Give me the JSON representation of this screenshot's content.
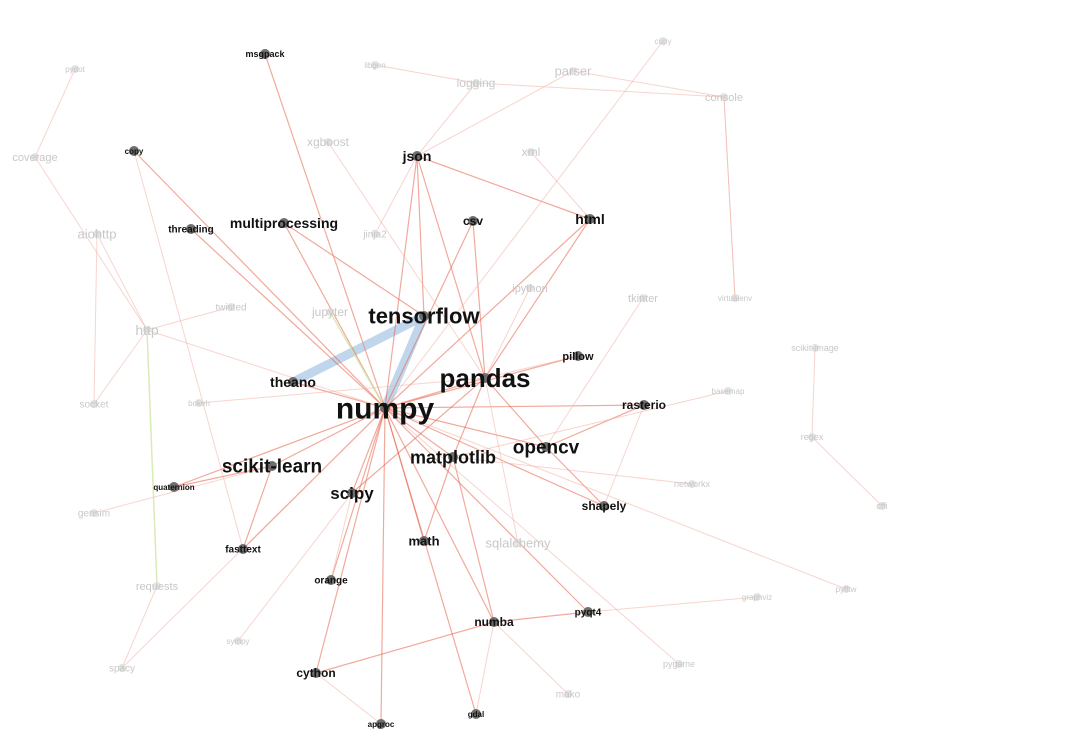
{
  "graph": {
    "colors": {
      "edge": "#e8634a",
      "edge_faint": "#f1b3a6",
      "edge_highlight": "#a9c8e6",
      "edge_green": "#cfe6a8",
      "node": "#666666",
      "node_faint": "#d9d9d9"
    },
    "nodes": [
      {
        "id": "numpy",
        "label": "numpy",
        "size": 30,
        "bold": true
      },
      {
        "id": "pandas",
        "label": "pandas",
        "size": 26,
        "bold": true
      },
      {
        "id": "tensorflow",
        "label": "tensorflow",
        "size": 22,
        "bold": true
      },
      {
        "id": "opencv",
        "label": "opencv",
        "size": 19,
        "bold": true
      },
      {
        "id": "scikit-learn",
        "label": "scikit-learn",
        "size": 19,
        "bold": true
      },
      {
        "id": "matplotlib",
        "label": "matplotlib",
        "size": 18,
        "bold": true
      },
      {
        "id": "scipy",
        "label": "scipy",
        "size": 17,
        "bold": true
      },
      {
        "id": "theano",
        "label": "theano",
        "size": 14,
        "bold": true
      },
      {
        "id": "json",
        "label": "json",
        "size": 14,
        "bold": true
      },
      {
        "id": "multiprocessing",
        "label": "multiprocessing",
        "size": 14,
        "bold": true
      },
      {
        "id": "html",
        "label": "html",
        "size": 14,
        "bold": true
      },
      {
        "id": "csv",
        "label": "csv",
        "size": 12,
        "bold": true
      },
      {
        "id": "math",
        "label": "math",
        "size": 13,
        "bold": true
      },
      {
        "id": "shapely",
        "label": "shapely",
        "size": 12,
        "bold": true
      },
      {
        "id": "rasterio",
        "label": "rasterio",
        "size": 12,
        "bold": true
      },
      {
        "id": "pillow",
        "label": "pillow",
        "size": 11,
        "bold": true
      },
      {
        "id": "cython",
        "label": "cython",
        "size": 12,
        "bold": true
      },
      {
        "id": "numba",
        "label": "numba",
        "size": 12,
        "bold": true
      },
      {
        "id": "pyqt4",
        "label": "pyqt4",
        "size": 10,
        "bold": true
      },
      {
        "id": "orange",
        "label": "orange",
        "size": 10,
        "bold": true
      },
      {
        "id": "fasttext",
        "label": "fasttext",
        "size": 10,
        "bold": true
      },
      {
        "id": "threading",
        "label": "threading",
        "size": 10,
        "bold": true
      },
      {
        "id": "msgpack",
        "label": "msgpack",
        "size": 9,
        "bold": true
      },
      {
        "id": "quaternion",
        "label": "quaternion",
        "size": 8,
        "bold": true
      },
      {
        "id": "copy",
        "label": "copy",
        "size": 8,
        "bold": true
      },
      {
        "id": "gdal",
        "label": "gdal",
        "size": 8,
        "bold": true
      },
      {
        "id": "apgroc",
        "label": "apgroc",
        "size": 8,
        "bold": true
      },
      {
        "id": "logging",
        "label": "logging",
        "size": 12,
        "bold": false
      },
      {
        "id": "parser",
        "label": "parser",
        "size": 13,
        "bold": false
      },
      {
        "id": "console",
        "label": "console",
        "size": 11,
        "bold": false
      },
      {
        "id": "xgboost",
        "label": "xgboost",
        "size": 12,
        "bold": false
      },
      {
        "id": "xml",
        "label": "xml",
        "size": 12,
        "bold": false
      },
      {
        "id": "coverage",
        "label": "coverage",
        "size": 11,
        "bold": false
      },
      {
        "id": "aiohttp",
        "label": "aiohttp",
        "size": 13,
        "bold": false
      },
      {
        "id": "http",
        "label": "http",
        "size": 14,
        "bold": false
      },
      {
        "id": "twisted",
        "label": "twisted",
        "size": 10,
        "bold": false
      },
      {
        "id": "jupyter",
        "label": "jupyter",
        "size": 12,
        "bold": false
      },
      {
        "id": "ipython",
        "label": "ipython",
        "size": 11,
        "bold": false
      },
      {
        "id": "tkinter",
        "label": "tkinter",
        "size": 11,
        "bold": false
      },
      {
        "id": "socket",
        "label": "socket",
        "size": 10,
        "bold": false
      },
      {
        "id": "gensim",
        "label": "gensim",
        "size": 10,
        "bold": false
      },
      {
        "id": "requests",
        "label": "requests",
        "size": 11,
        "bold": false
      },
      {
        "id": "sqlalchemy",
        "label": "sqlalchemy",
        "size": 13,
        "bold": false
      },
      {
        "id": "networkx",
        "label": "networkx",
        "size": 9,
        "bold": false
      },
      {
        "id": "spacy",
        "label": "spacy",
        "size": 10,
        "bold": false
      },
      {
        "id": "mako",
        "label": "mako",
        "size": 10,
        "bold": false
      },
      {
        "id": "jinja2",
        "label": "jinja2",
        "size": 10,
        "bold": false
      },
      {
        "id": "scikit-image",
        "label": "scikit-image",
        "size": 9,
        "bold": false
      },
      {
        "id": "regex",
        "label": "regex",
        "size": 9,
        "bold": false
      },
      {
        "id": "cffi",
        "label": "cffi",
        "size": 9,
        "bold": false
      },
      {
        "id": "pygame",
        "label": "pygame",
        "size": 9,
        "bold": false
      },
      {
        "id": "virtualenv",
        "label": "virtualenv",
        "size": 8,
        "bold": false
      },
      {
        "id": "basemap",
        "label": "basemap",
        "size": 8,
        "bold": false
      },
      {
        "id": "graphviz",
        "label": "graphviz",
        "size": 8,
        "bold": false
      },
      {
        "id": "pyfftw",
        "label": "pyfftw",
        "size": 8,
        "bold": false
      },
      {
        "id": "cupy",
        "label": "cupy",
        "size": 8,
        "bold": false
      },
      {
        "id": "pydot",
        "label": "pydot",
        "size": 8,
        "bold": false
      },
      {
        "id": "bokeh",
        "label": "bokeh",
        "size": 8,
        "bold": false
      },
      {
        "id": "sympy",
        "label": "sympy",
        "size": 8,
        "bold": false
      },
      {
        "id": "libgen",
        "label": "libgen",
        "size": 8,
        "bold": false
      }
    ],
    "edges": [
      {
        "source": "numpy",
        "target": "tensorflow",
        "style": "highlight"
      },
      {
        "source": "theano",
        "target": "tensorflow",
        "style": "highlight"
      },
      {
        "source": "numpy",
        "target": "pandas",
        "style": "strong"
      },
      {
        "source": "numpy",
        "target": "matplotlib",
        "style": "strong"
      },
      {
        "source": "numpy",
        "target": "opencv",
        "style": "strong"
      },
      {
        "source": "numpy",
        "target": "scipy",
        "style": "strong"
      },
      {
        "source": "numpy",
        "target": "scikit-learn",
        "style": "strong"
      },
      {
        "source": "numpy",
        "target": "theano",
        "style": "strong"
      },
      {
        "source": "numpy",
        "target": "json",
        "style": "strong"
      },
      {
        "source": "numpy",
        "target": "csv",
        "style": "strong"
      },
      {
        "source": "numpy",
        "target": "html",
        "style": "strong"
      },
      {
        "source": "numpy",
        "target": "multiprocessing",
        "style": "strong"
      },
      {
        "source": "numpy",
        "target": "math",
        "style": "strong"
      },
      {
        "source": "numpy",
        "target": "cython",
        "style": "strong"
      },
      {
        "source": "numpy",
        "target": "numba",
        "style": "strong"
      },
      {
        "source": "numpy",
        "target": "orange",
        "style": "strong"
      },
      {
        "source": "numpy",
        "target": "fasttext",
        "style": "strong"
      },
      {
        "source": "numpy",
        "target": "copy",
        "style": "strong"
      },
      {
        "source": "numpy",
        "target": "threading",
        "style": "strong"
      },
      {
        "source": "numpy",
        "target": "msgpack",
        "style": "strong"
      },
      {
        "source": "numpy",
        "target": "pillow",
        "style": "strong"
      },
      {
        "source": "numpy",
        "target": "rasterio",
        "style": "strong"
      },
      {
        "source": "numpy",
        "target": "shapely",
        "style": "strong"
      },
      {
        "source": "numpy",
        "target": "quaternion",
        "style": "strong"
      },
      {
        "source": "numpy",
        "target": "gdal",
        "style": "strong"
      },
      {
        "source": "numpy",
        "target": "apgroc",
        "style": "strong"
      },
      {
        "source": "numpy",
        "target": "pyqt4",
        "style": "strong"
      },
      {
        "source": "pandas",
        "target": "matplotlib",
        "style": "strong"
      },
      {
        "source": "pandas",
        "target": "json",
        "style": "strong"
      },
      {
        "source": "pandas",
        "target": "csv",
        "style": "strong"
      },
      {
        "source": "pandas",
        "target": "html",
        "style": "strong"
      },
      {
        "source": "pandas",
        "target": "opencv",
        "style": "strong"
      },
      {
        "source": "pandas",
        "target": "scipy",
        "style": "strong"
      },
      {
        "source": "opencv",
        "target": "shapely",
        "style": "strong"
      },
      {
        "source": "opencv",
        "target": "rasterio",
        "style": "strong"
      },
      {
        "source": "matplotlib",
        "target": "math",
        "style": "strong"
      },
      {
        "source": "matplotlib",
        "target": "numba",
        "style": "strong"
      },
      {
        "source": "scikit-learn",
        "target": "fasttext",
        "style": "strong"
      },
      {
        "source": "scikit-learn",
        "target": "quaternion",
        "style": "strong"
      },
      {
        "source": "tensorflow",
        "target": "multiprocessing",
        "style": "strong"
      },
      {
        "source": "tensorflow",
        "target": "json",
        "style": "strong"
      },
      {
        "source": "html",
        "target": "json",
        "style": "strong"
      },
      {
        "source": "numba",
        "target": "pyqt4",
        "style": "strong"
      },
      {
        "source": "cython",
        "target": "numba",
        "style": "strong"
      },
      {
        "source": "copy",
        "target": "fasttext",
        "style": "faint"
      },
      {
        "source": "msgpack",
        "target": "numpy",
        "style": "faint"
      },
      {
        "source": "logging",
        "target": "console",
        "style": "faint"
      },
      {
        "source": "parser",
        "target": "console",
        "style": "faint"
      },
      {
        "source": "json",
        "target": "parser",
        "style": "faint"
      },
      {
        "source": "json",
        "target": "logging",
        "style": "faint"
      },
      {
        "source": "xml",
        "target": "html",
        "style": "faint"
      },
      {
        "source": "xgboost",
        "target": "pandas",
        "style": "faint"
      },
      {
        "source": "coverage",
        "target": "http",
        "style": "faint"
      },
      {
        "source": "aiohttp",
        "target": "http",
        "style": "faint"
      },
      {
        "source": "aiohttp",
        "target": "socket",
        "style": "faint"
      },
      {
        "source": "http",
        "target": "socket",
        "style": "faint"
      },
      {
        "source": "http",
        "target": "requests",
        "style": "green"
      },
      {
        "source": "http",
        "target": "numpy",
        "style": "faint"
      },
      {
        "source": "twisted",
        "target": "http",
        "style": "faint"
      },
      {
        "source": "jupyter",
        "target": "numpy",
        "style": "green"
      },
      {
        "source": "ipython",
        "target": "pandas",
        "style": "faint"
      },
      {
        "source": "tkinter",
        "target": "opencv",
        "style": "faint"
      },
      {
        "source": "gensim",
        "target": "scikit-learn",
        "style": "faint"
      },
      {
        "source": "requests",
        "target": "spacy",
        "style": "faint"
      },
      {
        "source": "sqlalchemy",
        "target": "pandas",
        "style": "faint"
      },
      {
        "source": "networkx",
        "target": "matplotlib",
        "style": "faint"
      },
      {
        "source": "mako",
        "target": "numba",
        "style": "faint"
      },
      {
        "source": "jinja2",
        "target": "json",
        "style": "faint"
      },
      {
        "source": "scikit-image",
        "target": "regex",
        "style": "faint"
      },
      {
        "source": "regex",
        "target": "cffi",
        "style": "faint"
      },
      {
        "source": "pygame",
        "target": "numpy",
        "style": "faint"
      },
      {
        "source": "virtualenv",
        "target": "console",
        "style": "faint"
      },
      {
        "source": "basemap",
        "target": "matplotlib",
        "style": "faint"
      },
      {
        "source": "pyfftw",
        "target": "numpy",
        "style": "faint"
      },
      {
        "source": "cupy",
        "target": "numpy",
        "style": "faint"
      },
      {
        "source": "graphviz",
        "target": "pyqt4",
        "style": "faint"
      },
      {
        "source": "bokeh",
        "target": "pandas",
        "style": "faint"
      },
      {
        "source": "sympy",
        "target": "scipy",
        "style": "faint"
      },
      {
        "source": "libgen",
        "target": "logging",
        "style": "faint"
      },
      {
        "source": "pydot",
        "target": "coverage",
        "style": "faint"
      },
      {
        "source": "console",
        "target": "virtualenv",
        "style": "faint"
      },
      {
        "source": "spacy",
        "target": "numpy",
        "style": "faint"
      },
      {
        "source": "gdal",
        "target": "numba",
        "style": "faint"
      },
      {
        "source": "apgroc",
        "target": "cython",
        "style": "faint"
      },
      {
        "source": "orange",
        "target": "scipy",
        "style": "faint"
      },
      {
        "source": "pillow",
        "target": "pandas",
        "style": "faint"
      },
      {
        "source": "rasterio",
        "target": "shapely",
        "style": "faint"
      }
    ]
  }
}
